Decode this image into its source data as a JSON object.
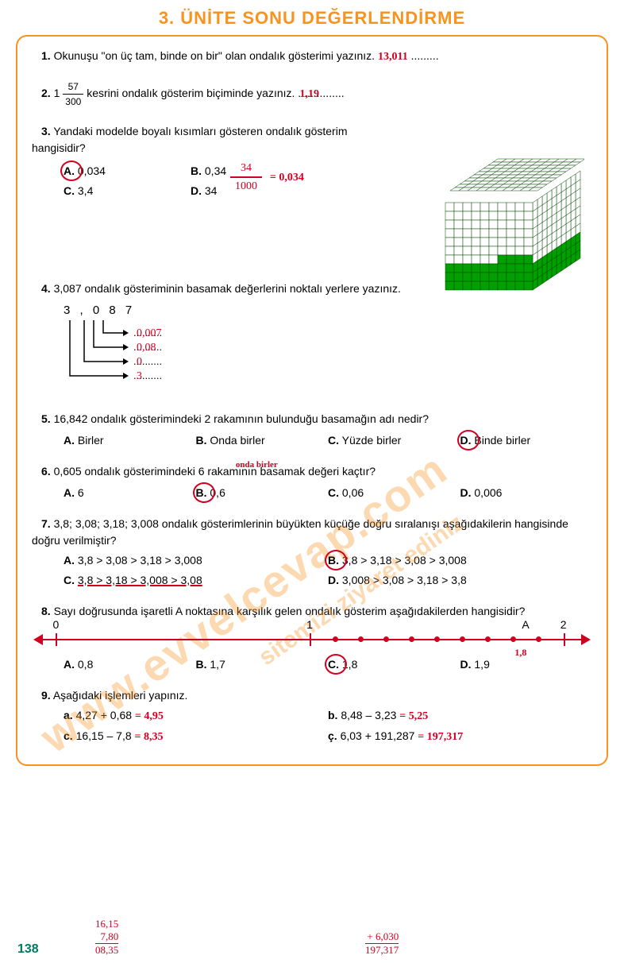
{
  "title": "3. ÜNİTE SONU DEĞERLENDİRME",
  "pageNumber": "138",
  "q1": {
    "num": "1.",
    "text": "Okunuşu \"on üç tam, binde on bir\" olan ondalık gösterimi yazınız. ",
    "answer": "13,011",
    "dots": "........."
  },
  "q2": {
    "num": "2.",
    "pre": "1",
    "fracNum": "57",
    "fracDen": "300",
    "text": " kesrini ondalık gösterim biçiminde yazınız. ...............",
    "answer": "1,19"
  },
  "q3": {
    "num": "3.",
    "text": "Yandaki modelde boyalı kısımları gösteren ondalık gösterim hangisidir?",
    "options": [
      {
        "l": "A.",
        "v": "0,034"
      },
      {
        "l": "B.",
        "v": "0,34"
      },
      {
        "l": "C.",
        "v": "3,4"
      },
      {
        "l": "D.",
        "v": "34"
      }
    ],
    "workNum": "34",
    "workDen": "1000",
    "workEq": "= 0,034",
    "cube": {
      "gridColor": "#004400",
      "fillColor": "#00a000",
      "emptyColor": "#ffffff",
      "width": 10,
      "height": 10,
      "depth": 10,
      "filledRowsFront": 3,
      "filledColsFront": 4,
      "cellSize": 11
    }
  },
  "q4": {
    "num": "4.",
    "text": "3,087 ondalık gösteriminin basamak değerlerini noktalı yerlere yazınız.",
    "number": "3 , 0 8 7",
    "values": [
      "0,007",
      "0,08",
      "0",
      "3"
    ]
  },
  "q5": {
    "num": "5.",
    "text": "16,842 ondalık gösterimindeki 2 rakamının bulunduğu basamağın adı nedir?",
    "options": [
      {
        "l": "A.",
        "v": "Birler"
      },
      {
        "l": "B.",
        "v": "Onda birler"
      },
      {
        "l": "C.",
        "v": "Yüzde birler"
      },
      {
        "l": "D.",
        "v": "Binde birler"
      }
    ],
    "answerIdx": 3
  },
  "q6": {
    "num": "6.",
    "text": "0,605 ondalık gösterimindeki 6 rakamının basamak değeri kaçtır?",
    "note": "onda birler",
    "options": [
      {
        "l": "A.",
        "v": "6"
      },
      {
        "l": "B.",
        "v": "0,6"
      },
      {
        "l": "C.",
        "v": "0,06"
      },
      {
        "l": "D.",
        "v": "0,006"
      }
    ],
    "answerIdx": 1
  },
  "q7": {
    "num": "7.",
    "text": "3,8; 3,08; 3,18; 3,008 ondalık gösterimlerinin büyükten küçüğe doğru sıralanışı aşağıdakilerin hangisinde doğru verilmiştir?",
    "options": [
      {
        "l": "A.",
        "v": "3,8 > 3,08 > 3,18 > 3,008"
      },
      {
        "l": "B.",
        "v": "3,8 > 3,18 > 3,08 > 3,008"
      },
      {
        "l": "C.",
        "v": "3,8 > 3,18 > 3,008 > 3,08"
      },
      {
        "l": "D.",
        "v": "3,008 > 3,08 > 3,18 > 3,8"
      }
    ],
    "answerIdx": 1
  },
  "q8": {
    "num": "8.",
    "text": "Sayı doğrusunda işaretli A noktasına karşılık gelen ondalık gösterim aşağıdakilerden hangisidir?",
    "labels": {
      "zero": "0",
      "one": "1",
      "A": "A",
      "two": "2"
    },
    "ticks": [
      0,
      50,
      55,
      60,
      65,
      70,
      75,
      80,
      85,
      90,
      95,
      100
    ],
    "majorTicks": [
      0,
      50,
      100
    ],
    "aPos": 90,
    "aAnswer": "1,8",
    "options": [
      {
        "l": "A.",
        "v": "0,8"
      },
      {
        "l": "B.",
        "v": "1,7"
      },
      {
        "l": "C.",
        "v": "1,8"
      },
      {
        "l": "D.",
        "v": "1,9"
      }
    ],
    "answerIdx": 2
  },
  "q9": {
    "num": "9.",
    "text": "Aşağıdaki işlemleri yapınız.",
    "items": [
      {
        "l": "a.",
        "expr": "4,27 + 0,68",
        "ans": "= 4,95"
      },
      {
        "l": "b.",
        "expr": "8,48 – 3,23",
        "ans": "= 5,25"
      },
      {
        "l": "c.",
        "expr": "16,15 – 7,8",
        "ans": "= 8,35"
      },
      {
        "l": "ç.",
        "expr": "6,03 + 191,287",
        "ans": "= 197,317"
      }
    ]
  },
  "workings": {
    "w1": [
      "16,15",
      "7,80",
      "08,35"
    ],
    "w2": [
      "6,030",
      "197,317"
    ]
  },
  "watermark1": "www.evvelcevap.com",
  "watermark2": "sitemizi ziyaret ediniz"
}
